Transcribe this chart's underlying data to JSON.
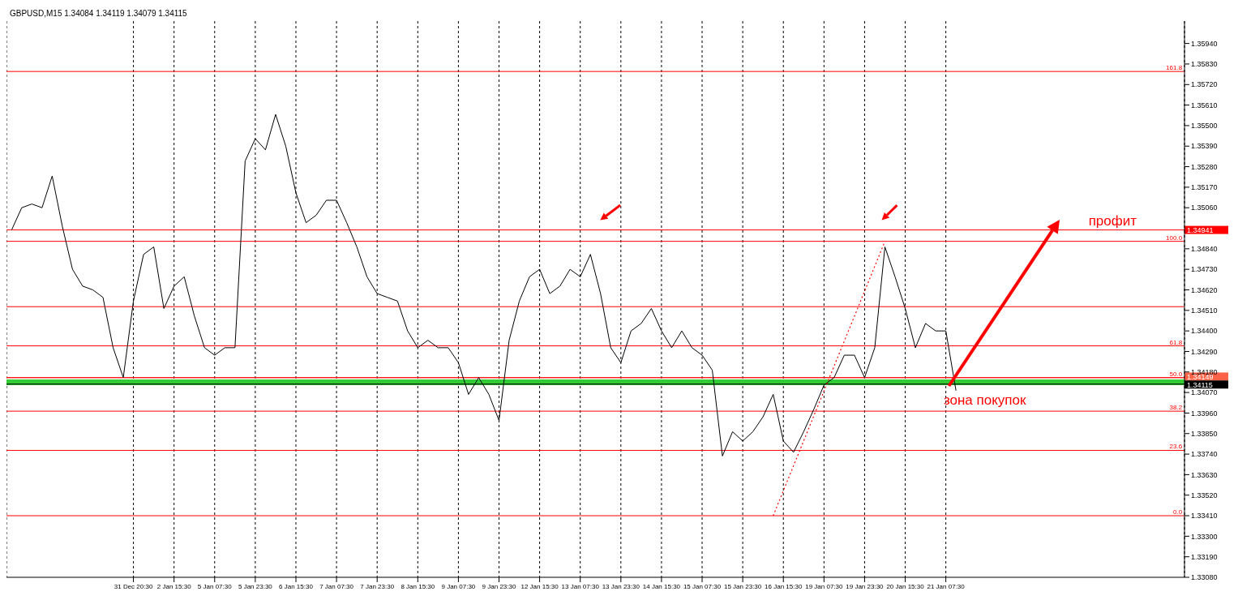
{
  "chart_data": {
    "type": "line",
    "title": "GBPUSD,M15  1.34084 1.34119 1.34079 1.34115",
    "categories": [
      null,
      null,
      null,
      null,
      null,
      null,
      null,
      null,
      null,
      null,
      null,
      null,
      "31 Dec 20:30",
      null,
      null,
      null,
      "2 Jan 15:30",
      null,
      null,
      null,
      "5 Jan 07:30",
      null,
      null,
      null,
      "5 Jan 23:30",
      null,
      null,
      null,
      "6 Jan 15:30",
      null,
      null,
      null,
      "7 Jan 07:30",
      null,
      null,
      null,
      "7 Jan 23:30",
      null,
      null,
      null,
      "8 Jan 15:30",
      null,
      null,
      null,
      "9 Jan 07:30",
      null,
      null,
      null,
      "9 Jan 23:30",
      null,
      null,
      null,
      "12 Jan 15:30",
      null,
      null,
      null,
      "13 Jan 07:30",
      null,
      null,
      null,
      "13 Jan 23:30",
      null,
      null,
      null,
      "14 Jan 15:30",
      null,
      null,
      null,
      "15 Jan 07:30",
      null,
      null,
      null,
      "15 Jan 23:30",
      null,
      null,
      null,
      "16 Jan 15:30",
      null,
      null,
      null,
      "19 Jan 07:30",
      null,
      null,
      null,
      "19 Jan 23:30",
      null,
      null,
      null,
      "20 Jan 15:30",
      null,
      null,
      null,
      "21 Jan 07:30",
      null,
      null,
      null,
      null,
      null,
      null,
      null,
      null,
      null,
      null,
      null,
      null,
      null,
      null,
      null,
      null,
      null,
      null,
      null,
      null,
      null,
      null,
      null
    ],
    "series": [
      {
        "color": "#000000",
        "values": [
          1.3494,
          1.3506,
          1.3508,
          1.3506,
          1.3523,
          1.3496,
          1.3473,
          1.3464,
          1.3462,
          1.3458,
          1.3431,
          1.3415,
          1.3456,
          1.3481,
          1.3485,
          1.3452,
          1.3464,
          1.3469,
          1.3448,
          1.3431,
          1.3427,
          1.3431,
          1.3431,
          1.3531,
          1.3543,
          1.3537,
          1.3556,
          1.3539,
          1.3514,
          1.3498,
          1.3502,
          1.351,
          1.351,
          1.3498,
          1.3485,
          1.3469,
          1.346,
          1.3458,
          1.3456,
          1.344,
          1.3431,
          1.3435,
          1.3431,
          1.3431,
          1.3423,
          1.3406,
          1.3415,
          1.3406,
          1.3392,
          1.3435,
          1.3456,
          1.3469,
          1.3473,
          1.346,
          1.3464,
          1.3473,
          1.3469,
          1.3481,
          1.346,
          1.3431,
          1.3423,
          1.344,
          1.3444,
          1.3452,
          1.344,
          1.3431,
          1.344,
          1.3431,
          1.3427,
          1.3419,
          1.3373,
          1.3386,
          1.3381,
          1.3386,
          1.3394,
          1.3406,
          1.3381,
          1.3375,
          1.3386,
          1.3398,
          1.3411,
          1.3415,
          1.3427,
          1.3427,
          1.3415,
          1.3431,
          1.3485,
          1.3469,
          1.3452,
          1.3431,
          1.3444,
          1.344,
          1.344,
          1.3408,
          null,
          null,
          null,
          null,
          null,
          null,
          null,
          null,
          null,
          null,
          null,
          null,
          null,
          null,
          null,
          null,
          null,
          null,
          null,
          null,
          null,
          null
        ]
      },
      {
        "type": "line",
        "color": "#ff0000",
        "line_style": "dotted",
        "values": [
          null,
          null,
          null,
          null,
          null,
          null,
          null,
          null,
          null,
          null,
          null,
          null,
          null,
          null,
          null,
          null,
          null,
          null,
          null,
          null,
          null,
          null,
          null,
          null,
          null,
          null,
          null,
          null,
          null,
          null,
          null,
          null,
          null,
          null,
          null,
          null,
          null,
          null,
          null,
          null,
          null,
          null,
          null,
          null,
          null,
          null,
          null,
          null,
          null,
          null,
          null,
          null,
          null,
          null,
          null,
          null,
          null,
          null,
          null,
          null,
          null,
          null,
          null,
          null,
          null,
          null,
          null,
          null,
          null,
          null,
          null,
          null,
          null,
          null,
          null,
          1.3341,
          null,
          null,
          null,
          null,
          null,
          null,
          null,
          null,
          null,
          null,
          1.3488,
          null,
          null,
          null,
          null,
          null,
          null,
          null,
          null,
          null,
          null,
          null,
          null,
          null,
          null,
          null,
          null,
          null,
          null,
          null,
          null,
          null,
          null,
          null,
          null,
          null,
          null,
          null,
          null,
          null
        ]
      }
    ],
    "ylim": [
      1.3308,
      1.3606
    ],
    "yticks": [
      {
        "value": 1.3594,
        "label": "1.35940"
      },
      {
        "value": 1.3583,
        "label": "1.35830"
      },
      {
        "value": 1.3572,
        "label": "1.35720"
      },
      {
        "value": 1.3561,
        "label": "1.35610"
      },
      {
        "value": 1.355,
        "label": "1.35500"
      },
      {
        "value": 1.3539,
        "label": "1.35390"
      },
      {
        "value": 1.3528,
        "label": "1.35280"
      },
      {
        "value": 1.3517,
        "label": "1.35170"
      },
      {
        "value": 1.3506,
        "label": "1.35060"
      },
      {
        "value": 1.3484,
        "label": "1.34840"
      },
      {
        "value": 1.3473,
        "label": "1.34730"
      },
      {
        "value": 1.3462,
        "label": "1.34620"
      },
      {
        "value": 1.3451,
        "label": "1.34510"
      },
      {
        "value": 1.344,
        "label": "1.34400"
      },
      {
        "value": 1.3429,
        "label": "1.34290"
      },
      {
        "value": 1.3418,
        "label": "1.34180"
      },
      {
        "value": 1.3407,
        "label": "1.34070"
      },
      {
        "value": 1.3396,
        "label": "1.33960"
      },
      {
        "value": 1.3385,
        "label": "1.33850"
      },
      {
        "value": 1.3374,
        "label": "1.33740"
      },
      {
        "value": 1.3363,
        "label": "1.33630"
      },
      {
        "value": 1.3352,
        "label": "1.33520"
      },
      {
        "value": 1.3341,
        "label": "1.33410"
      },
      {
        "value": 1.333,
        "label": "1.33300"
      },
      {
        "value": 1.3319,
        "label": "1.33190"
      },
      {
        "value": 1.3308,
        "label": "1.33080"
      }
    ],
    "ref_lines": [
      {
        "axis": "y",
        "value": 1.34941,
        "label": "1.34941",
        "color": "#ff0000"
      },
      {
        "axis": "y",
        "value": 1.34149,
        "label": "1.34149",
        "color": "#ff6347"
      },
      {
        "axis": "y",
        "value": 1.34115,
        "label": "1.34115",
        "color": "#000000"
      },
      {
        "axis": "y",
        "value": 1.3579,
        "label": null,
        "color": "#ff0000"
      },
      {
        "axis": "y",
        "value": 1.3488,
        "label": null,
        "color": "#ff0000"
      },
      {
        "axis": "y",
        "value": 1.3453,
        "label": null,
        "color": "#ff0000"
      },
      {
        "axis": "y",
        "value": 1.3432,
        "label": null,
        "color": "#ff0000"
      },
      {
        "axis": "y",
        "value": 1.3415,
        "label": null,
        "color": "#ff0000"
      },
      {
        "axis": "y",
        "value": 1.3397,
        "label": null,
        "color": "#ff0000"
      },
      {
        "axis": "y",
        "value": 1.3376,
        "label": null,
        "color": "#ff0000"
      },
      {
        "axis": "y",
        "value": 1.3341,
        "label": null,
        "color": "#ff0000"
      }
    ],
    "bands": [
      {
        "axis": "y",
        "from": 1.3411,
        "to": 1.3414,
        "label": null,
        "color": "#33cc33"
      }
    ],
    "annotations": [
      "профит",
      {
        "text": "зона покупок",
        "x": "21 Jan 07:30",
        "y": 1.3411
      },
      {
        "text": "161.8",
        "y": 1.3579
      },
      {
        "text": "100.0",
        "y": 1.3488
      },
      {
        "text": "61.8",
        "y": 1.3432
      },
      {
        "text": "50.0",
        "y": 1.3415
      },
      {
        "text": "38.2",
        "y": 1.3397
      },
      {
        "text": "23.6",
        "y": 1.3376
      },
      {
        "text": "0.0",
        "y": 1.3341
      }
    ],
    "grid": "x"
  }
}
